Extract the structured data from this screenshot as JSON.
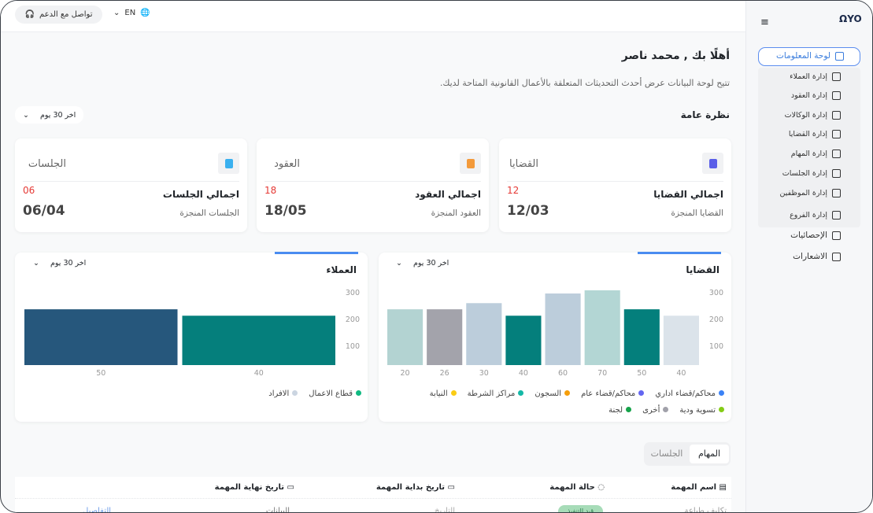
{
  "topbar": {
    "support_label": "تواصل مع الدعم",
    "language": "EN"
  },
  "sidebar": {
    "items": [
      {
        "label": "لوحة المعلومات",
        "icon": "grid-icon",
        "active": true
      },
      {
        "label": "إدارة العملاء",
        "icon": "id-card-icon"
      },
      {
        "label": "إدارة العقود",
        "icon": "documents-icon"
      },
      {
        "label": "إدارة الوكالات",
        "icon": "user-badge-icon"
      },
      {
        "label": "إدارة القضايا",
        "icon": "inbox-icon"
      },
      {
        "label": "إدارة المهام",
        "icon": "checkbox-icon"
      },
      {
        "label": "إدارة الجلسات",
        "icon": "calendar-icon"
      },
      {
        "label": "إدارة الموظفين",
        "icon": "users-icon"
      },
      {
        "label": "إدارة الفروع",
        "icon": "branches-icon"
      },
      {
        "label": "الإحصائيات",
        "icon": "chart-board-icon"
      },
      {
        "label": "الاشعارات",
        "icon": "bell-icon"
      }
    ]
  },
  "header": {
    "greeting": "أهلًا بك , محمد ناصر",
    "subtitle": "تتيح لوحة البيانات عرض أحدث التحديثات المتعلقة بالأعمال القانونية المتاحة لديك."
  },
  "overview": {
    "title": "نظرة عامة",
    "period": "اخر 30 يوم"
  },
  "stats": [
    {
      "title": "القضايا",
      "total_label": "اجمالي القضايا",
      "total": "12",
      "done_label": "القضايا المنجزة",
      "done": "12/03",
      "color": "#5b5fe8"
    },
    {
      "title": "العقود",
      "total_label": "اجمالي العقود",
      "total": "18",
      "done_label": "العقود المنجزة",
      "done": "18/05",
      "color": "#f39a3b"
    },
    {
      "title": "الجلسات",
      "total_label": "اجمالي الجلسات",
      "total": "06",
      "done_label": "الجلسات المنجزة",
      "done": "06/04",
      "color": "#3ab0ef"
    }
  ],
  "accent": "#4a8cf0",
  "chart_data": [
    {
      "type": "bar",
      "title": "القضايا",
      "period": "اخر 30 يوم",
      "ylim": [
        0,
        300
      ],
      "yticks": [
        "100",
        "200",
        "300"
      ],
      "categories": [
        "20",
        "26",
        "30",
        "40",
        "60",
        "70",
        "50",
        "40"
      ],
      "values": [
        235,
        235,
        258,
        211,
        294,
        306,
        235,
        211
      ],
      "colors": [
        "#b3d3d2",
        "#a3a3ab",
        "#bccddb",
        "#047f7c",
        "#bccddb",
        "#b3d6d4",
        "#047f7c",
        "#dbe3ea"
      ],
      "legend": [
        {
          "label": "محاكم/قضاء اداري",
          "color": "#3b82f6"
        },
        {
          "label": "محاكم/قضاء عام",
          "color": "#6366f1"
        },
        {
          "label": "السجون",
          "color": "#f59e0b"
        },
        {
          "label": "مراكز الشرطة",
          "color": "#14b8a6"
        },
        {
          "label": "النيابة",
          "color": "#facc15"
        },
        {
          "label": "تسوية ودية",
          "color": "#84cc16"
        },
        {
          "label": "أخرى",
          "color": "#a1a1aa"
        },
        {
          "label": "لجنة",
          "color": "#16a34a"
        }
      ]
    },
    {
      "type": "bar",
      "title": "العملاء",
      "period": "اخر 30 يوم",
      "ylim": [
        0,
        300
      ],
      "yticks": [
        "100",
        "200",
        "300"
      ],
      "categories": [
        "50",
        "40"
      ],
      "values": [
        235,
        211
      ],
      "colors": [
        "#26577c",
        "#057f7c"
      ],
      "legend": [
        {
          "label": "قطاع الاعمال",
          "color": "#10b981"
        },
        {
          "label": "الافراد",
          "color": "#cbd5e1"
        }
      ]
    }
  ],
  "tabs": {
    "tasks": "المهام",
    "sessions": "الجلسات"
  },
  "table": {
    "headers": [
      "اسم المهمة",
      "حالة المهمة",
      "تاريخ بداية المهمة",
      "تاريخ نهاية المهمة"
    ],
    "row": {
      "name": "تكليف طباعة",
      "status": "قيد التنفيذ",
      "start": "التاريخ",
      "end": "البيانات",
      "link": "التفاصيل"
    }
  }
}
